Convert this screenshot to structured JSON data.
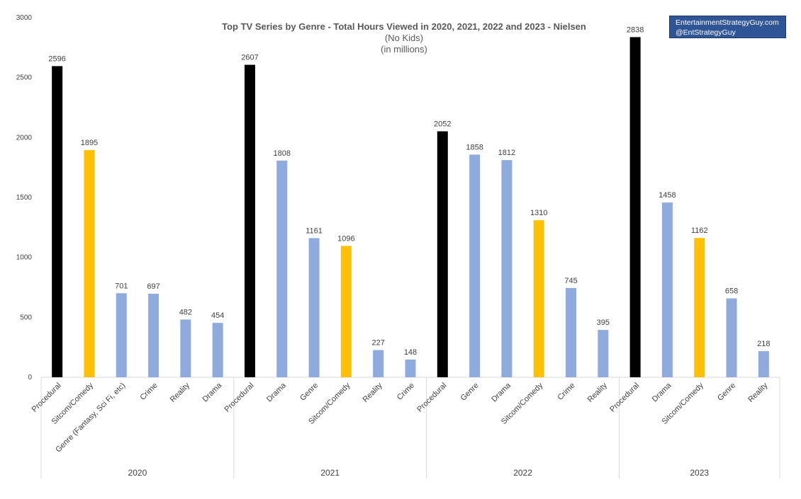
{
  "chart_data": {
    "type": "bar",
    "title": "Top TV Series by Genre - Total Hours Viewed in 2020,  2021, 2022 and 2023 - Nielsen",
    "subtitle_lines": [
      "(No Kids)",
      "(in millions)"
    ],
    "ylim": [
      0,
      3000
    ],
    "yticks": [
      0,
      500,
      1000,
      1500,
      2000,
      2500,
      3000
    ],
    "grid": false,
    "legend": "none",
    "colors": {
      "procedural": "#000000",
      "sitcom": "#ffc000",
      "other": "#8faadc",
      "axis": "#d9d9d9",
      "text": "#404040"
    },
    "groups": [
      {
        "label": "2020",
        "bars": [
          {
            "category": "Procedural",
            "value": 2596,
            "kind": "procedural"
          },
          {
            "category": "Sitcom/Comedy",
            "value": 1895,
            "kind": "sitcom"
          },
          {
            "category": "Genre (Fantasy, Sci Fi, etc)",
            "value": 701,
            "kind": "other"
          },
          {
            "category": "Crime",
            "value": 697,
            "kind": "other"
          },
          {
            "category": "Reality",
            "value": 482,
            "kind": "other"
          },
          {
            "category": "Drama",
            "value": 454,
            "kind": "other"
          }
        ]
      },
      {
        "label": "2021",
        "bars": [
          {
            "category": "Procedural",
            "value": 2607,
            "kind": "procedural"
          },
          {
            "category": "Drama",
            "value": 1808,
            "kind": "other"
          },
          {
            "category": "Genre",
            "value": 1161,
            "kind": "other"
          },
          {
            "category": "Sitcom/Comedy",
            "value": 1096,
            "kind": "sitcom"
          },
          {
            "category": "Reality",
            "value": 227,
            "kind": "other"
          },
          {
            "category": "Crime",
            "value": 148,
            "kind": "other"
          }
        ]
      },
      {
        "label": "2022",
        "bars": [
          {
            "category": "Procedural",
            "value": 2052,
            "kind": "procedural"
          },
          {
            "category": "Genre",
            "value": 1858,
            "kind": "other"
          },
          {
            "category": "Drama",
            "value": 1812,
            "kind": "other"
          },
          {
            "category": "Sitcom/Comedy",
            "value": 1310,
            "kind": "sitcom"
          },
          {
            "category": "Crime",
            "value": 745,
            "kind": "other"
          },
          {
            "category": "Reality",
            "value": 395,
            "kind": "other"
          }
        ]
      },
      {
        "label": "2023",
        "bars": [
          {
            "category": "Procedural",
            "value": 2838,
            "kind": "procedural"
          },
          {
            "category": "Drama",
            "value": 1458,
            "kind": "other"
          },
          {
            "category": "Sitcom/Comedy",
            "value": 1162,
            "kind": "sitcom"
          },
          {
            "category": "Genre",
            "value": 658,
            "kind": "other"
          },
          {
            "category": "Reality",
            "value": 218,
            "kind": "other"
          }
        ]
      }
    ]
  },
  "brand": {
    "line1": "EntertainmentStrategyGuy.com",
    "line2": "@EntStrategyGuy"
  }
}
